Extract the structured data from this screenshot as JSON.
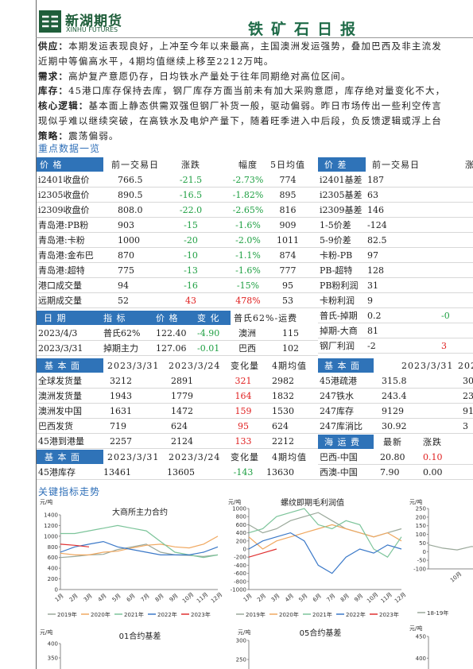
{
  "header": {
    "logo_cn": "新湖期货",
    "logo_en": "XINHU FUTURES",
    "title": "铁矿石日报"
  },
  "summary": [
    {
      "label": "供应：",
      "lines": [
        "本期发运表现良好，上冲至今年以来最高，主国澳洲发运强势，叠加巴西及非主流发",
        "近期中等偏高水平，4期均值继续上移至2212万吨。"
      ]
    },
    {
      "label": "需求：",
      "lines": [
        "高炉复产意愿仍存，日均铁水产量处于往年同期绝对高位区间。"
      ]
    },
    {
      "label": "库存：",
      "lines": [
        "45港口库存保持去库，钢厂库存方面当前未有加大采购意愿，库存绝对量变化不大，"
      ]
    },
    {
      "label": "核心逻辑：",
      "lines": [
        "基本面上静态供需双强但钢厂补货一般，驱动偏弱。昨日市场传出一些利空传言",
        "现似乎难以继续突破，在高铁水及电炉产量下，随着旺季进入中后段，负反馈逻辑或浮上台"
      ]
    },
    {
      "label": "策略：",
      "lines": [
        "震荡偏弱。"
      ]
    }
  ],
  "section1": "重点数据一览",
  "tables": {
    "prices": {
      "header": [
        "价 格",
        "前一交易日",
        "涨跌",
        "幅度",
        "5日均值"
      ],
      "rows": [
        [
          "i2401收盘价",
          "766.5",
          "-21.5",
          "-2.73%",
          "774"
        ],
        [
          "i2305收盘价",
          "890.5",
          "-16.5",
          "-1.82%",
          "895"
        ],
        [
          "i2309收盘价",
          "808.0",
          "-22.0",
          "-2.65%",
          "816"
        ],
        [
          "青岛港:PB粉",
          "903",
          "-15",
          "-1.6%",
          "909"
        ],
        [
          "青岛港:卡粉",
          "1000",
          "-20",
          "-2.0%",
          "1011"
        ],
        [
          "青岛港:金布巴",
          "870",
          "-10",
          "-1.1%",
          "874"
        ],
        [
          "青岛港:超特",
          "775",
          "-13",
          "-1.6%",
          "777"
        ],
        [
          "港口成交量",
          "94",
          "-16",
          "-15%",
          "95"
        ],
        [
          "远期成交量",
          "52",
          "43",
          "478%",
          "53"
        ]
      ]
    },
    "spreads": {
      "header": [
        "价 差",
        "前一交易日",
        "涨"
      ],
      "rows": [
        [
          "i2401基差",
          "187"
        ],
        [
          "i2305基差",
          "63"
        ],
        [
          "i2309基差",
          "146"
        ],
        [
          "1-5价差",
          "-124"
        ],
        [
          "5-9价差",
          "82.5"
        ],
        [
          "卡粉-PB",
          "97"
        ],
        [
          "PB-超特",
          "128"
        ],
        [
          "PB粉利润",
          "31"
        ],
        [
          "卡粉利润",
          "9"
        ],
        [
          "普氏-掉期",
          "0.2",
          "-0"
        ],
        [
          "掉期-大商",
          "81"
        ],
        [
          "钢厂利润",
          "-2",
          "3"
        ]
      ]
    },
    "index": {
      "header": [
        "日 期",
        "指 标",
        "价 格",
        "变 化",
        "普氏62%-运费"
      ],
      "rows": [
        [
          "2023/4/3",
          "普氏62%",
          "122.40",
          "-4.90",
          "澳洲",
          "115"
        ],
        [
          "2023/3/31",
          "掉期主力",
          "127.06",
          "-0.01",
          "巴西",
          "102"
        ]
      ]
    },
    "fundamentals": {
      "header": [
        "基 本 面",
        "2023/3/31",
        "2023/3/24",
        "变化量",
        "4期均值"
      ],
      "rows": [
        [
          "全球发货量",
          "3212",
          "2891",
          "321",
          "2982"
        ],
        [
          "澳洲发货量",
          "1943",
          "1779",
          "164",
          "1832"
        ],
        [
          "澳洲发中国",
          "1631",
          "1472",
          "159",
          "1530"
        ],
        [
          "巴西发货",
          "719",
          "624",
          "95",
          "624"
        ],
        [
          "45港到港量",
          "2257",
          "2124",
          "133",
          "2212"
        ]
      ]
    },
    "inventory": {
      "header": [
        "基 本 面",
        "2023/3/31",
        "2023/3/24",
        "变化量",
        "4期均值"
      ],
      "rows": [
        [
          "45港库存",
          "13461",
          "13605",
          "-143",
          "13630"
        ]
      ]
    },
    "right_fundamentals": {
      "header": [
        "基 本 面",
        "2023/3/31",
        "202"
      ],
      "rows": [
        [
          "45港疏港",
          "315.8",
          "30"
        ],
        [
          "247铁水",
          "243.4",
          "23"
        ],
        [
          "247库存",
          "9129",
          "91."
        ],
        [
          "247库消比",
          "30.92",
          "3"
        ]
      ]
    },
    "freight": {
      "header": [
        "海 运 费",
        "最新",
        "涨跌"
      ],
      "rows": [
        [
          "巴西-中国",
          "20.80",
          "0.10"
        ],
        [
          "西澳-中国",
          "7.90",
          "0.00"
        ]
      ]
    }
  },
  "section2": "关键指标走势",
  "chart_data": [
    {
      "type": "line",
      "title": "大商所主力合约",
      "y_unit": "元/吨",
      "categories": [
        "1月",
        "2月",
        "3月",
        "4月",
        "5月",
        "6月",
        "7月",
        "8月",
        "9月",
        "10月",
        "11月",
        "12月"
      ],
      "ylim": [
        0,
        1400
      ],
      "yticks": [
        0,
        200,
        400,
        600,
        800,
        1000,
        1200,
        1400
      ],
      "series": [
        {
          "name": "2019年",
          "color": "#9aa89a",
          "values": [
            600,
            620,
            650,
            660,
            750,
            800,
            850,
            700,
            650,
            640,
            620,
            650
          ]
        },
        {
          "name": "2020年",
          "color": "#f0a860",
          "values": [
            680,
            650,
            650,
            700,
            720,
            780,
            830,
            850,
            800,
            780,
            850,
            1000
          ]
        },
        {
          "name": "2021年",
          "color": "#7cc49a",
          "values": [
            1050,
            1050,
            1100,
            1150,
            1200,
            1150,
            1100,
            900,
            700,
            650,
            600,
            650
          ]
        },
        {
          "name": "2022年",
          "color": "#3a78c8",
          "values": [
            700,
            800,
            850,
            900,
            800,
            750,
            700,
            650,
            650,
            650,
            700,
            800
          ]
        },
        {
          "name": "2023年",
          "color": "#e03030",
          "values": [
            850,
            830,
            800,
            null,
            null,
            null,
            null,
            null,
            null,
            null,
            null,
            null
          ]
        }
      ]
    },
    {
      "type": "line",
      "title": "螺纹即期毛利润值",
      "y_unit": "元/吨",
      "categories": [
        "1月",
        "2月",
        "3月",
        "4月",
        "5月",
        "6月",
        "7月",
        "8月",
        "9月",
        "10月",
        "11月",
        "12月"
      ],
      "ylim": [
        -1000,
        1000
      ],
      "yticks": [
        -1000,
        -800,
        -600,
        -400,
        -200,
        0,
        200,
        400,
        600,
        800,
        1000
      ],
      "series": [
        {
          "name": "2019年",
          "color": "#9aa89a",
          "values": [
            600,
            400,
            500,
            700,
            800,
            900,
            700,
            500,
            400,
            300,
            400,
            500
          ]
        },
        {
          "name": "2020年",
          "color": "#f0a860",
          "values": [
            300,
            0,
            200,
            300,
            400,
            500,
            600,
            500,
            400,
            300,
            400,
            200
          ]
        },
        {
          "name": "2021年",
          "color": "#7cc49a",
          "values": [
            400,
            500,
            800,
            900,
            1000,
            600,
            500,
            700,
            600,
            0,
            -200,
            300
          ]
        },
        {
          "name": "2022年",
          "color": "#3a78c8",
          "values": [
            0,
            200,
            300,
            400,
            200,
            -400,
            -600,
            -200,
            0,
            -100,
            100,
            0
          ]
        },
        {
          "name": "2023年",
          "color": "#e03030",
          "values": [
            -200,
            -100,
            0,
            null,
            null,
            null,
            null,
            null,
            null,
            null,
            null,
            null
          ]
        }
      ]
    },
    {
      "type": "line",
      "y_unit": "元/吨",
      "categories": [
        null,
        null,
        "10月",
        null,
        null
      ],
      "ylim": [
        -100,
        250
      ],
      "yticks": [
        -100,
        -50,
        0,
        50,
        100,
        150,
        200,
        250
      ],
      "series": [
        {
          "name": "18-19年",
          "color": "#9aa89a",
          "values": [
            40,
            20,
            10,
            30,
            25
          ]
        }
      ]
    },
    {
      "type": "line",
      "title": "01合约基差",
      "y_unit": "元/吨",
      "ylim": [
        200,
        400
      ],
      "yticks": [
        300,
        350,
        400
      ]
    },
    {
      "type": "line",
      "title": "05合约基差",
      "y_unit": "元/吨",
      "ylim": [
        150,
        300
      ],
      "yticks": [
        200,
        250,
        300
      ]
    },
    {
      "type": "line",
      "y_unit": "元/吨",
      "ylim": [
        300,
        450
      ],
      "yticks": [
        350,
        400,
        450
      ]
    }
  ]
}
